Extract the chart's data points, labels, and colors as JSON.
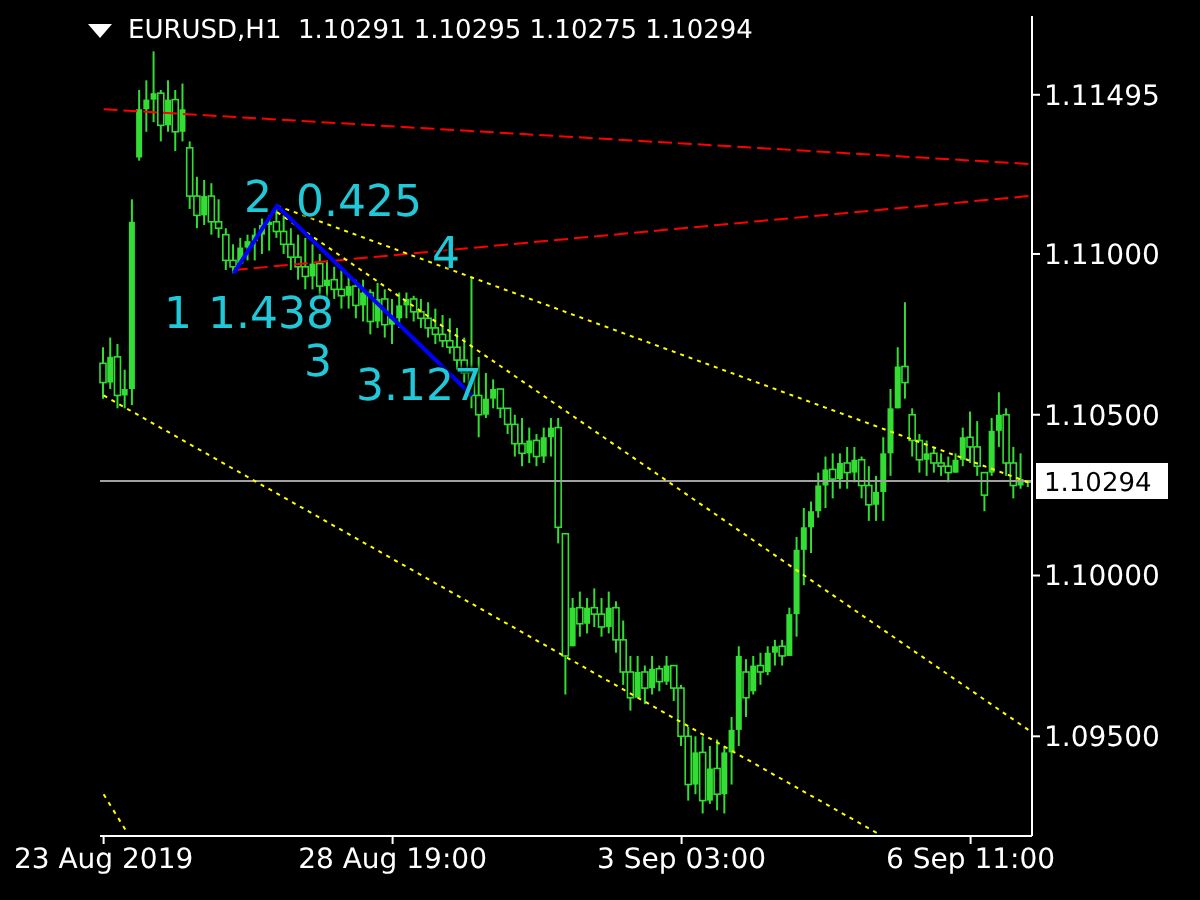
{
  "chart_data": {
    "type": "candlestick",
    "title": "EURUSD,H1  1.10291 1.10295 1.10275 1.10294",
    "color": "#33dd33",
    "categories": [
      "23 Aug 2019",
      null,
      null,
      null,
      null,
      null,
      null,
      null,
      null,
      null,
      null,
      null,
      null,
      null,
      null,
      null,
      null,
      null,
      null,
      null,
      null,
      null,
      null,
      null,
      null,
      null,
      null,
      null,
      null,
      null,
      null,
      null,
      null,
      null,
      null,
      null,
      null,
      null,
      null,
      null,
      "28 Aug 19:00",
      null,
      null,
      null,
      null,
      null,
      null,
      null,
      null,
      null,
      null,
      null,
      null,
      null,
      null,
      null,
      null,
      null,
      null,
      null,
      null,
      null,
      null,
      null,
      null,
      null,
      null,
      null,
      null,
      null,
      null,
      null,
      null,
      null,
      null,
      null,
      null,
      null,
      null,
      null,
      "3 Sep 03:00",
      null,
      null,
      null,
      null,
      null,
      null,
      null,
      null,
      null,
      null,
      null,
      null,
      null,
      null,
      null,
      null,
      null,
      null,
      null,
      null,
      null,
      null,
      null,
      null,
      null,
      null,
      null,
      null,
      null,
      null,
      null,
      null,
      null,
      null,
      null,
      null,
      null,
      null,
      null,
      "6 Sep 11:00",
      null,
      null,
      null,
      null,
      null,
      null,
      null,
      null
    ],
    "ohlc": [
      [
        1.1066,
        1.1071,
        1.1055,
        1.106
      ],
      [
        1.106,
        1.1074,
        1.1058,
        1.1068
      ],
      [
        1.1068,
        1.1072,
        1.1052,
        1.1056
      ],
      [
        1.1056,
        1.1064,
        1.1052,
        1.1058
      ],
      [
        1.1058,
        1.1117,
        1.1053,
        1.111
      ],
      [
        1.113,
        1.1151,
        1.1129,
        1.1145
      ],
      [
        1.1145,
        1.1154,
        1.1138,
        1.1148
      ],
      [
        1.1148,
        1.1163,
        1.1141,
        1.115
      ],
      [
        1.115,
        1.1151,
        1.1135,
        1.114
      ],
      [
        1.114,
        1.1154,
        1.1138,
        1.1148
      ],
      [
        1.1148,
        1.1151,
        1.1132,
        1.1138
      ],
      [
        1.1138,
        1.1153,
        1.1135,
        1.1145
      ],
      [
        1.1133,
        1.1135,
        1.1114,
        1.1118
      ],
      [
        1.1118,
        1.1124,
        1.1108,
        1.1112
      ],
      [
        1.1112,
        1.1123,
        1.1109,
        1.1118
      ],
      [
        1.1118,
        1.1122,
        1.1106,
        1.111
      ],
      [
        1.111,
        1.1117,
        1.1105,
        1.1108
      ],
      [
        1.1106,
        1.1108,
        1.1095,
        1.1098
      ],
      [
        1.1098,
        1.1103,
        1.1094,
        1.1096
      ],
      [
        1.1097,
        1.1105,
        1.1097,
        1.1102
      ],
      [
        1.1102,
        1.1106,
        1.1098,
        1.1104
      ],
      [
        1.1104,
        1.1108,
        1.1098,
        1.1106
      ],
      [
        1.1106,
        1.1111,
        1.11,
        1.1109
      ],
      [
        1.1109,
        1.1112,
        1.1101,
        1.111
      ],
      [
        1.111,
        1.1115,
        1.1105,
        1.1107
      ],
      [
        1.1107,
        1.1112,
        1.11,
        1.1103
      ],
      [
        1.1103,
        1.1108,
        1.1095,
        1.1099
      ],
      [
        1.1099,
        1.1106,
        1.1092,
        1.1096
      ],
      [
        1.1096,
        1.1105,
        1.1089,
        1.1093
      ],
      [
        1.1093,
        1.1103,
        1.1089,
        1.1097
      ],
      [
        1.1097,
        1.11,
        1.1086,
        1.109
      ],
      [
        1.109,
        1.1098,
        1.1085,
        1.1092
      ],
      [
        1.1092,
        1.1096,
        1.1086,
        1.1089
      ],
      [
        1.1089,
        1.1095,
        1.1083,
        1.1087
      ],
      [
        1.1087,
        1.1093,
        1.1083,
        1.109
      ],
      [
        1.109,
        1.1092,
        1.108,
        1.1084
      ],
      [
        1.1084,
        1.1092,
        1.1079,
        1.1088
      ],
      [
        1.1088,
        1.1089,
        1.1075,
        1.1079
      ],
      [
        1.1079,
        1.1091,
        1.1077,
        1.1086
      ],
      [
        1.1086,
        1.1089,
        1.1074,
        1.1078
      ],
      [
        1.1078,
        1.1086,
        1.1072,
        1.108
      ],
      [
        1.108,
        1.1088,
        1.1077,
        1.1084
      ],
      [
        1.1084,
        1.1088,
        1.108,
        1.1086
      ],
      [
        1.1086,
        1.1087,
        1.1079,
        1.1082
      ],
      [
        1.1082,
        1.1086,
        1.1077,
        1.108
      ],
      [
        1.108,
        1.1085,
        1.1074,
        1.1077
      ],
      [
        1.1077,
        1.1083,
        1.1072,
        1.1075
      ],
      [
        1.1075,
        1.1081,
        1.1071,
        1.1073
      ],
      [
        1.1073,
        1.108,
        1.1069,
        1.1071
      ],
      [
        1.1071,
        1.1077,
        1.1064,
        1.1067
      ],
      [
        1.1067,
        1.1074,
        1.106,
        1.1063
      ],
      [
        1.1063,
        1.1093,
        1.1052,
        1.1056
      ],
      [
        1.1056,
        1.1068,
        1.1043,
        1.105
      ],
      [
        1.105,
        1.1063,
        1.1049,
        1.1055
      ],
      [
        1.1055,
        1.1061,
        1.1052,
        1.1058
      ],
      [
        1.1058,
        1.1058,
        1.1049,
        1.1052
      ],
      [
        1.1052,
        1.1052,
        1.1044,
        1.1047
      ],
      [
        1.1047,
        1.105,
        1.1037,
        1.1041
      ],
      [
        1.1041,
        1.1049,
        1.1034,
        1.1038
      ],
      [
        1.1038,
        1.1046,
        1.1035,
        1.1042
      ],
      [
        1.1042,
        1.1044,
        1.1034,
        1.1037
      ],
      [
        1.1037,
        1.1046,
        1.1035,
        1.1043
      ],
      [
        1.1043,
        1.1049,
        1.1037,
        1.1046
      ],
      [
        1.1046,
        1.1049,
        1.101,
        1.1015
      ],
      [
        1.1013,
        1.1013,
        1.0963,
        1.0975
      ],
      [
        1.0978,
        1.0993,
        1.0978,
        1.099
      ],
      [
        1.099,
        1.0995,
        1.0981,
        1.0985
      ],
      [
        1.0985,
        1.0993,
        1.0982,
        1.099
      ],
      [
        1.099,
        1.0996,
        1.0984,
        1.0988
      ],
      [
        1.0988,
        1.0993,
        1.0981,
        1.0984
      ],
      [
        1.0984,
        1.0995,
        1.0982,
        1.099
      ],
      [
        1.099,
        1.0992,
        1.0976,
        1.098
      ],
      [
        1.098,
        1.0986,
        1.0966,
        1.097
      ],
      [
        1.097,
        1.0975,
        1.0958,
        1.0962
      ],
      [
        1.0962,
        1.0975,
        1.0962,
        1.097
      ],
      [
        1.097,
        1.0972,
        1.096,
        1.0965
      ],
      [
        1.0965,
        1.0975,
        1.0963,
        1.0971
      ],
      [
        1.0971,
        1.0972,
        1.0964,
        1.0967
      ],
      [
        1.0967,
        1.0975,
        1.0966,
        1.0972
      ],
      [
        1.0972,
        1.0972,
        1.0961,
        1.0965
      ],
      [
        1.0965,
        1.0966,
        1.0947,
        1.095
      ],
      [
        1.095,
        1.0953,
        1.093,
        1.0935
      ],
      [
        1.0935,
        1.095,
        1.0932,
        1.0945
      ],
      [
        1.0945,
        1.095,
        1.0926,
        1.093
      ],
      [
        1.093,
        1.0947,
        1.0929,
        1.094
      ],
      [
        1.094,
        1.0949,
        1.0927,
        1.0932
      ],
      [
        1.0932,
        1.0947,
        1.0926,
        1.0945
      ],
      [
        1.0945,
        1.0956,
        1.0935,
        1.0952
      ],
      [
        1.0952,
        1.0978,
        1.0947,
        1.0975
      ],
      [
        1.097,
        1.0974,
        1.0956,
        1.0962
      ],
      [
        1.0964,
        1.0975,
        1.0963,
        1.0972
      ],
      [
        1.0972,
        1.0976,
        1.0966,
        1.097
      ],
      [
        1.097,
        1.0978,
        1.0969,
        1.0976
      ],
      [
        1.0976,
        1.098,
        1.0972,
        1.0978
      ],
      [
        1.0978,
        1.098,
        1.0972,
        1.0975
      ],
      [
        1.0975,
        1.099,
        1.0975,
        1.0988
      ],
      [
        1.0988,
        1.1012,
        1.0981,
        1.1008
      ],
      [
        1.1008,
        1.1021,
        1.0997,
        1.1015
      ],
      [
        1.1015,
        1.1023,
        1.1007,
        1.102
      ],
      [
        1.102,
        1.1032,
        1.1018,
        1.1028
      ],
      [
        1.1028,
        1.1037,
        1.1021,
        1.1033
      ],
      [
        1.1033,
        1.1038,
        1.1024,
        1.103
      ],
      [
        1.103,
        1.1038,
        1.1027,
        1.1035
      ],
      [
        1.1035,
        1.104,
        1.1027,
        1.1032
      ],
      [
        1.1032,
        1.104,
        1.1029,
        1.1036
      ],
      [
        1.1036,
        1.1037,
        1.1024,
        1.1028
      ],
      [
        1.1028,
        1.1034,
        1.1017,
        1.1022
      ],
      [
        1.1022,
        1.1031,
        1.1017,
        1.1026
      ],
      [
        1.1026,
        1.1043,
        1.1017,
        1.1038
      ],
      [
        1.1038,
        1.1058,
        1.1031,
        1.1052
      ],
      [
        1.1052,
        1.1071,
        1.1052,
        1.1065
      ],
      [
        1.1065,
        1.1085,
        1.1055,
        1.106
      ],
      [
        1.105,
        1.1052,
        1.1037,
        1.1042
      ],
      [
        1.1042,
        1.1044,
        1.1032,
        1.1036
      ],
      [
        1.1036,
        1.1042,
        1.1031,
        1.1038
      ],
      [
        1.1038,
        1.104,
        1.1032,
        1.1035
      ],
      [
        1.1035,
        1.1038,
        1.1031,
        1.1034
      ],
      [
        1.1034,
        1.1037,
        1.1029,
        1.1032
      ],
      [
        1.1032,
        1.1038,
        1.1032,
        1.1036
      ],
      [
        1.1036,
        1.1046,
        1.1034,
        1.1043
      ],
      [
        1.1043,
        1.1051,
        1.1035,
        1.104
      ],
      [
        1.104,
        1.1048,
        1.1031,
        1.1034
      ],
      [
        1.1032,
        1.1032,
        1.102,
        1.1025
      ],
      [
        1.1032,
        1.1049,
        1.1031,
        1.1045
      ],
      [
        1.1045,
        1.1057,
        1.104,
        1.105
      ],
      [
        1.105,
        1.1052,
        1.1031,
        1.1035
      ],
      [
        1.1035,
        1.104,
        1.1024,
        1.1028
      ],
      [
        1.1028,
        1.1038,
        1.1027,
        1.103
      ],
      [
        1.10291,
        1.10295,
        1.10275,
        1.10294
      ]
    ],
    "series": [
      {
        "type": "line",
        "color": "#ff0000",
        "line_style": "dashed",
        "values": [
          1.1145,
          null,
          null,
          null,
          null,
          null,
          null,
          null,
          null,
          null,
          null,
          null,
          null,
          null,
          null,
          null,
          null,
          null,
          null,
          null,
          null,
          null,
          null,
          null,
          null,
          null,
          null,
          null,
          null,
          null,
          null,
          null,
          null,
          null,
          null,
          null,
          null,
          null,
          null,
          null,
          null,
          null,
          null,
          null,
          null,
          null,
          null,
          null,
          null,
          null,
          null,
          null,
          null,
          null,
          null,
          null,
          null,
          null,
          null,
          null,
          null,
          null,
          null,
          null,
          null,
          null,
          null,
          null,
          null,
          null,
          null,
          null,
          null,
          null,
          null,
          null,
          null,
          null,
          null,
          null,
          null,
          null,
          null,
          null,
          null,
          null,
          null,
          null,
          null,
          null,
          null,
          null,
          null,
          null,
          null,
          null,
          null,
          null,
          null,
          null,
          null,
          null,
          null,
          null,
          null,
          null,
          null,
          null,
          null,
          null,
          null,
          null,
          null,
          null,
          null,
          null,
          null,
          null,
          null,
          null,
          null,
          null,
          null,
          null,
          null,
          null,
          null,
          null,
          1.1128
        ]
      },
      {
        "type": "line",
        "color": "#ff0000",
        "line_style": "dashed",
        "values": [
          null,
          null,
          null,
          null,
          null,
          null,
          null,
          null,
          null,
          null,
          null,
          null,
          null,
          null,
          null,
          null,
          null,
          null,
          1.1095,
          null,
          null,
          null,
          null,
          null,
          null,
          null,
          null,
          null,
          null,
          null,
          null,
          null,
          null,
          null,
          null,
          null,
          null,
          null,
          null,
          null,
          null,
          null,
          null,
          null,
          null,
          null,
          null,
          null,
          null,
          null,
          null,
          null,
          null,
          null,
          null,
          null,
          null,
          null,
          null,
          null,
          null,
          null,
          null,
          null,
          null,
          null,
          null,
          null,
          null,
          null,
          null,
          null,
          null,
          null,
          null,
          null,
          null,
          null,
          null,
          null,
          null,
          null,
          null,
          null,
          null,
          null,
          null,
          null,
          null,
          null,
          null,
          null,
          null,
          null,
          null,
          null,
          null,
          null,
          null,
          null,
          null,
          null,
          null,
          null,
          null,
          null,
          null,
          null,
          null,
          null,
          null,
          null,
          null,
          null,
          null,
          null,
          null,
          null,
          null,
          null,
          null,
          null,
          null,
          null,
          null,
          null,
          null,
          null,
          1.1118
        ]
      },
      {
        "type": "line",
        "color": "#ffff00",
        "line_style": "dotted",
        "values": [
          null,
          null,
          null,
          null,
          null,
          null,
          null,
          null,
          null,
          null,
          null,
          null,
          null,
          null,
          null,
          null,
          null,
          null,
          null,
          null,
          null,
          null,
          null,
          null,
          1.1115,
          null,
          null,
          null,
          null,
          null,
          null,
          null,
          null,
          null,
          null,
          null,
          null,
          null,
          null,
          null,
          null,
          null,
          null,
          null,
          null,
          null,
          null,
          null,
          null,
          null,
          null,
          null,
          null,
          null,
          null,
          null,
          null,
          null,
          null,
          null,
          null,
          null,
          null,
          null,
          null,
          null,
          null,
          null,
          null,
          null,
          null,
          null,
          null,
          null,
          null,
          null,
          null,
          null,
          null,
          null,
          null,
          null,
          null,
          null,
          null,
          null,
          null,
          null,
          null,
          null,
          null,
          null,
          null,
          null,
          null,
          null,
          null,
          null,
          null,
          null,
          null,
          null,
          null,
          null,
          null,
          null,
          null,
          null,
          null,
          null,
          null,
          null,
          null,
          null,
          null,
          null,
          null,
          null,
          null,
          null,
          null,
          null,
          null,
          null,
          null,
          null,
          null,
          null,
          1.1029
        ]
      },
      {
        "type": "line",
        "color": "#ffff00",
        "line_style": "dotted",
        "values": [
          null,
          null,
          null,
          null,
          null,
          null,
          null,
          null,
          null,
          null,
          null,
          null,
          null,
          null,
          null,
          null,
          null,
          null,
          null,
          null,
          null,
          null,
          null,
          null,
          1.1113,
          null,
          null,
          null,
          null,
          null,
          null,
          null,
          null,
          null,
          null,
          null,
          null,
          null,
          null,
          null,
          null,
          null,
          null,
          null,
          null,
          null,
          null,
          null,
          null,
          null,
          null,
          null,
          null,
          null,
          null,
          null,
          null,
          null,
          null,
          null,
          null,
          null,
          null,
          null,
          null,
          null,
          null,
          null,
          null,
          null,
          null,
          null,
          null,
          null,
          null,
          null,
          null,
          null,
          null,
          null,
          null,
          null,
          null,
          null,
          null,
          null,
          null,
          null,
          null,
          null,
          null,
          null,
          null,
          null,
          null,
          null,
          null,
          null,
          null,
          null,
          null,
          null,
          null,
          null,
          null,
          null,
          null,
          null,
          null,
          null,
          null,
          null,
          null,
          null,
          null,
          null,
          null,
          null,
          null,
          null,
          null,
          null,
          null,
          null,
          null,
          null,
          null,
          null,
          1.0952
        ]
      },
      {
        "type": "line",
        "color": "#ffff00",
        "line_style": "dotted",
        "values": [
          1.1056,
          null,
          null,
          null,
          null,
          null,
          null,
          null,
          null,
          null,
          null,
          null,
          null,
          null,
          null,
          null,
          null,
          null,
          null,
          null,
          null,
          null,
          null,
          null,
          null,
          null,
          null,
          null,
          null,
          null,
          null,
          null,
          null,
          null,
          null,
          null,
          null,
          null,
          null,
          null,
          null,
          null,
          null,
          null,
          null,
          null,
          null,
          null,
          null,
          null,
          null,
          null,
          null,
          null,
          null,
          null,
          null,
          null,
          null,
          null,
          null,
          null,
          null,
          null,
          null,
          null,
          null,
          null,
          null,
          null,
          null,
          null,
          null,
          null,
          null,
          null,
          null,
          null,
          null,
          null,
          null,
          null,
          null,
          null,
          null,
          null,
          null,
          null,
          null,
          null,
          null,
          null,
          null,
          null,
          null,
          null,
          null,
          null,
          null,
          null,
          null,
          null,
          null,
          null,
          null,
          null,
          null,
          1.092,
          null,
          null,
          null,
          null,
          null,
          null,
          null,
          null,
          null,
          null,
          null,
          null,
          null,
          null,
          null,
          null,
          null,
          null,
          null,
          null,
          null
        ]
      },
      {
        "type": "line",
        "color": "#ffff00",
        "line_style": "dotted",
        "values": [
          1.0932,
          null,
          null,
          1.0921,
          null,
          null,
          null,
          null,
          null,
          null,
          null,
          null,
          null,
          null,
          null,
          null,
          null,
          null,
          null,
          null,
          null,
          null,
          null,
          null,
          null,
          null,
          null,
          null,
          null,
          null,
          null,
          null,
          null,
          null,
          null,
          null,
          null,
          null,
          null,
          null,
          null,
          null,
          null,
          null,
          null,
          null,
          null,
          null,
          null,
          null,
          null,
          null,
          null,
          null,
          null,
          null,
          null,
          null,
          null,
          null,
          null,
          null,
          null,
          null,
          null,
          null,
          null,
          null,
          null,
          null,
          null,
          null,
          null,
          null,
          null,
          null,
          null,
          null,
          null,
          null,
          null,
          null,
          null,
          null,
          null,
          null,
          null,
          null,
          null,
          null,
          null,
          null,
          null,
          null,
          null,
          null,
          null,
          null,
          null,
          null,
          null,
          null,
          null,
          null,
          null,
          null,
          null,
          null,
          null,
          null,
          null,
          null,
          null,
          null,
          null,
          null,
          null,
          null,
          null,
          null,
          null,
          null,
          null,
          null,
          null,
          null,
          null,
          null,
          null
        ]
      },
      {
        "type": "line",
        "color": "#0000ff",
        "line_style": "solid",
        "values": [
          null,
          null,
          null,
          null,
          null,
          null,
          null,
          null,
          null,
          null,
          null,
          null,
          null,
          null,
          null,
          null,
          null,
          null,
          1.1094,
          null,
          null,
          null,
          null,
          null,
          1.1115,
          null,
          null,
          null,
          null,
          null,
          null,
          null,
          null,
          null,
          null,
          null,
          null,
          null,
          null,
          null,
          null,
          null,
          null,
          null,
          null,
          null,
          null,
          null,
          null,
          null,
          null,
          1.1056,
          null,
          null,
          null,
          null,
          null,
          null,
          null,
          null,
          null,
          null,
          null,
          null,
          null,
          null,
          null,
          null,
          null,
          null,
          null,
          null,
          null,
          null,
          null,
          null,
          null,
          null,
          null,
          null,
          null,
          null,
          null,
          null,
          null,
          null,
          null,
          null,
          null,
          null,
          null,
          null,
          null,
          null,
          null,
          null,
          null,
          null,
          null,
          null,
          null,
          null,
          null,
          null,
          null,
          null,
          null,
          null,
          null,
          null,
          null,
          null,
          null,
          null,
          null,
          null,
          null,
          null,
          null,
          null,
          null,
          null,
          null,
          null,
          null,
          null,
          null,
          null,
          null
        ]
      }
    ],
    "ylim": [
      1.0919,
      1.1174
    ],
    "yticks": [
      {
        "value": 1.095,
        "label": "1.09500"
      },
      {
        "value": 1.1,
        "label": "1.10000"
      },
      {
        "value": 1.105,
        "label": "1.10500"
      },
      {
        "value": 1.11,
        "label": "1.11000"
      },
      {
        "value": 1.11495,
        "label": "1.11495"
      }
    ],
    "ref_lines": [
      {
        "axis": "y",
        "value": 1.10294,
        "label": "1.10294",
        "color": "#a0a0a0"
      }
    ],
    "annotations": [
      "2",
      "0.425",
      "1",
      "1.438",
      "4",
      "3",
      "3.127"
    ],
    "grid": false,
    "legend": false
  }
}
